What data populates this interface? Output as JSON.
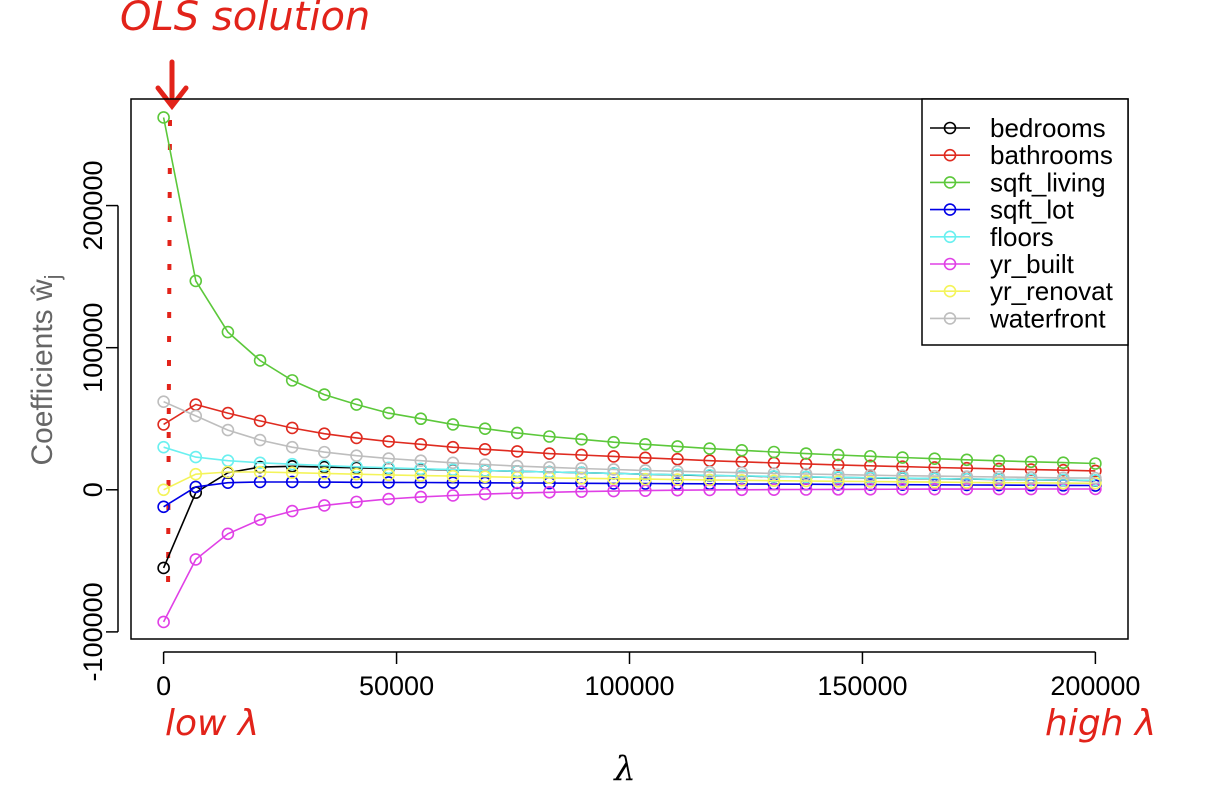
{
  "chart_data": {
    "type": "line",
    "xlabel": "λ",
    "ylabel": "Coefficients ŵ",
    "ylabel_subscript": "j",
    "xlim": [
      -7000,
      207000
    ],
    "ylim": [
      -105000,
      275000
    ],
    "x_ticks": [
      0,
      50000,
      100000,
      150000,
      200000
    ],
    "x_tick_labels": [
      "0",
      "50000",
      "100000",
      "150000",
      "200000"
    ],
    "y_ticks": [
      -100000,
      0,
      100000,
      200000
    ],
    "y_tick_labels": [
      "-100000",
      "0",
      "100000",
      "200000"
    ],
    "grid": false,
    "legend_position": "top-right",
    "x": [
      0,
      6900,
      13800,
      20700,
      27600,
      34500,
      41400,
      48300,
      55200,
      62100,
      69000,
      75900,
      82800,
      89700,
      96600,
      103400,
      110300,
      117200,
      124100,
      131000,
      137900,
      144800,
      151700,
      158600,
      165500,
      172400,
      179300,
      186200,
      193100,
      200000
    ],
    "series": [
      {
        "name": "bedrooms",
        "color": "#000000",
        "values": [
          -55000,
          -2000,
          12000,
          16000,
          16500,
          16000,
          15500,
          15000,
          14500,
          14000,
          13500,
          13000,
          12500,
          12000,
          11500,
          11000,
          10500,
          10000,
          9700,
          9300,
          9000,
          8700,
          8400,
          8100,
          7800,
          7500,
          7300,
          7000,
          6800,
          6500
        ]
      },
      {
        "name": "bathrooms",
        "color": "#df2b20",
        "values": [
          46000,
          60000,
          54000,
          48500,
          43500,
          39500,
          36500,
          34000,
          32000,
          30000,
          28500,
          27000,
          25500,
          24500,
          23500,
          22500,
          21500,
          20500,
          19700,
          18900,
          18200,
          17500,
          16900,
          16300,
          15700,
          15200,
          14700,
          14200,
          13800,
          13300
        ]
      },
      {
        "name": "sqft_living",
        "color": "#5cc83b",
        "values": [
          262000,
          147000,
          111000,
          91000,
          77000,
          67000,
          60000,
          54000,
          50000,
          46000,
          43000,
          40000,
          37500,
          35500,
          33500,
          32000,
          30500,
          29000,
          27800,
          26600,
          25500,
          24500,
          23600,
          22700,
          21900,
          21100,
          20400,
          19700,
          19100,
          18500
        ]
      },
      {
        "name": "sqft_lot",
        "color": "#0000e6",
        "values": [
          -12000,
          2000,
          5000,
          5500,
          5500,
          5400,
          5300,
          5200,
          5100,
          5000,
          4900,
          4800,
          4700,
          4600,
          4500,
          4400,
          4300,
          4200,
          4100,
          4000,
          3900,
          3800,
          3700,
          3600,
          3500,
          3400,
          3300,
          3200,
          3100,
          3000
        ]
      },
      {
        "name": "floors",
        "color": "#6af0f0",
        "values": [
          30000,
          23000,
          20500,
          19000,
          18000,
          17000,
          16200,
          15500,
          14800,
          14200,
          13600,
          13000,
          12500,
          12000,
          11500,
          11000,
          10600,
          10200,
          9800,
          9400,
          9100,
          8800,
          8500,
          8200,
          7900,
          7600,
          7400,
          7100,
          6900,
          6700
        ]
      },
      {
        "name": "yr_built",
        "color": "#e040e6",
        "values": [
          -93000,
          -49000,
          -31000,
          -21000,
          -15000,
          -11000,
          -8500,
          -6500,
          -5000,
          -4000,
          -3000,
          -2300,
          -1800,
          -1300,
          -900,
          -600,
          -300,
          -100,
          0,
          100,
          200,
          300,
          350,
          400,
          450,
          500,
          520,
          540,
          560,
          580
        ]
      },
      {
        "name": "yr_renovated",
        "color": "#f4f45a",
        "values": [
          0,
          11000,
          12500,
          12500,
          12000,
          11500,
          11000,
          10500,
          10000,
          9600,
          9200,
          8800,
          8400,
          8100,
          7800,
          7500,
          7200,
          6900,
          6700,
          6400,
          6200,
          6000,
          5800,
          5600,
          5400,
          5200,
          5000,
          4900,
          4700,
          4600
        ]
      },
      {
        "name": "waterfront",
        "color": "#bebebe",
        "values": [
          62000,
          52000,
          42000,
          35000,
          30000,
          26500,
          24000,
          22000,
          20500,
          19000,
          17800,
          16700,
          15800,
          15000,
          14300,
          13600,
          13000,
          12500,
          12000,
          11500,
          11100,
          10700,
          10300,
          9900,
          9600,
          9300,
          9000,
          8700,
          8400,
          8200
        ]
      }
    ],
    "legend_labels": [
      "bedrooms",
      "bathrooms",
      "sqft_living",
      "sqft_lot",
      "floors",
      "yr_built",
      "yr_renovat",
      "waterfront"
    ]
  },
  "annotations": {
    "top": "OLS solution",
    "low": "low λ",
    "high": "high λ"
  },
  "annotation_color": "#e2231a"
}
